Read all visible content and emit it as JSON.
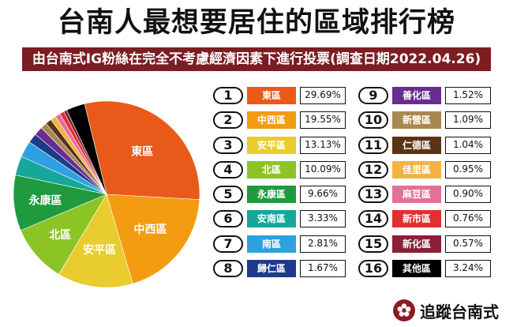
{
  "title": "台南人最想要居住的區域排行榜",
  "subtitle": "由台南式IG粉絲在完全不考慮經濟因素下進行投票(調查日期2022.04.26)",
  "brand": {
    "name": "追蹤台南式",
    "logo_icon": "plum-blossom-icon",
    "logo_color": "#8e1b22"
  },
  "chart_data": {
    "type": "pie",
    "title": "台南人最想要居住的區域排行榜",
    "unit": "%",
    "slices": [
      {
        "rank": "1",
        "label": "東區",
        "value": 29.69,
        "display": "29.69%",
        "color": "#e8591a",
        "pie_label": "東區"
      },
      {
        "rank": "2",
        "label": "中西區",
        "value": 19.55,
        "display": "19.55%",
        "color": "#f39c12",
        "pie_label": "中西區"
      },
      {
        "rank": "3",
        "label": "安平區",
        "value": 13.13,
        "display": "13.13%",
        "color": "#e9cc2e",
        "pie_label": "安平區"
      },
      {
        "rank": "4",
        "label": "北區",
        "value": 10.09,
        "display": "10.09%",
        "color": "#8cc425",
        "pie_label": "北區"
      },
      {
        "rank": "5",
        "label": "永康區",
        "value": 9.66,
        "display": "9.66%",
        "color": "#1f9a3e",
        "pie_label": "永康區"
      },
      {
        "rank": "6",
        "label": "安南區",
        "value": 3.33,
        "display": "3.33%",
        "color": "#15a89a",
        "pie_label": ""
      },
      {
        "rank": "7",
        "label": "南區",
        "value": 2.81,
        "display": "2.81%",
        "color": "#2e9fe0",
        "pie_label": ""
      },
      {
        "rank": "8",
        "label": "歸仁區",
        "value": 1.67,
        "display": "1.67%",
        "color": "#1e3a8a",
        "pie_label": ""
      },
      {
        "rank": "9",
        "label": "善化區",
        "value": 1.52,
        "display": "1.52%",
        "color": "#6a2c91",
        "pie_label": ""
      },
      {
        "rank": "10",
        "label": "新營區",
        "value": 1.09,
        "display": "1.09%",
        "color": "#a9884f",
        "pie_label": ""
      },
      {
        "rank": "11",
        "label": "仁德區",
        "value": 1.04,
        "display": "1.04%",
        "color": "#5a3415",
        "pie_label": ""
      },
      {
        "rank": "12",
        "label": "佳里區",
        "value": 0.95,
        "display": "0.95%",
        "color": "#f4b244",
        "pie_label": ""
      },
      {
        "rank": "13",
        "label": "麻豆區",
        "value": 0.9,
        "display": "0.90%",
        "color": "#e3709a",
        "pie_label": ""
      },
      {
        "rank": "14",
        "label": "新市區",
        "value": 0.76,
        "display": "0.76%",
        "color": "#e03030",
        "pie_label": ""
      },
      {
        "rank": "15",
        "label": "新化區",
        "value": 0.57,
        "display": "0.57%",
        "color": "#8a1f36",
        "pie_label": ""
      },
      {
        "rank": "16",
        "label": "其他區",
        "value": 3.24,
        "display": "3.24%",
        "color": "#000000",
        "pie_label": ""
      }
    ]
  }
}
